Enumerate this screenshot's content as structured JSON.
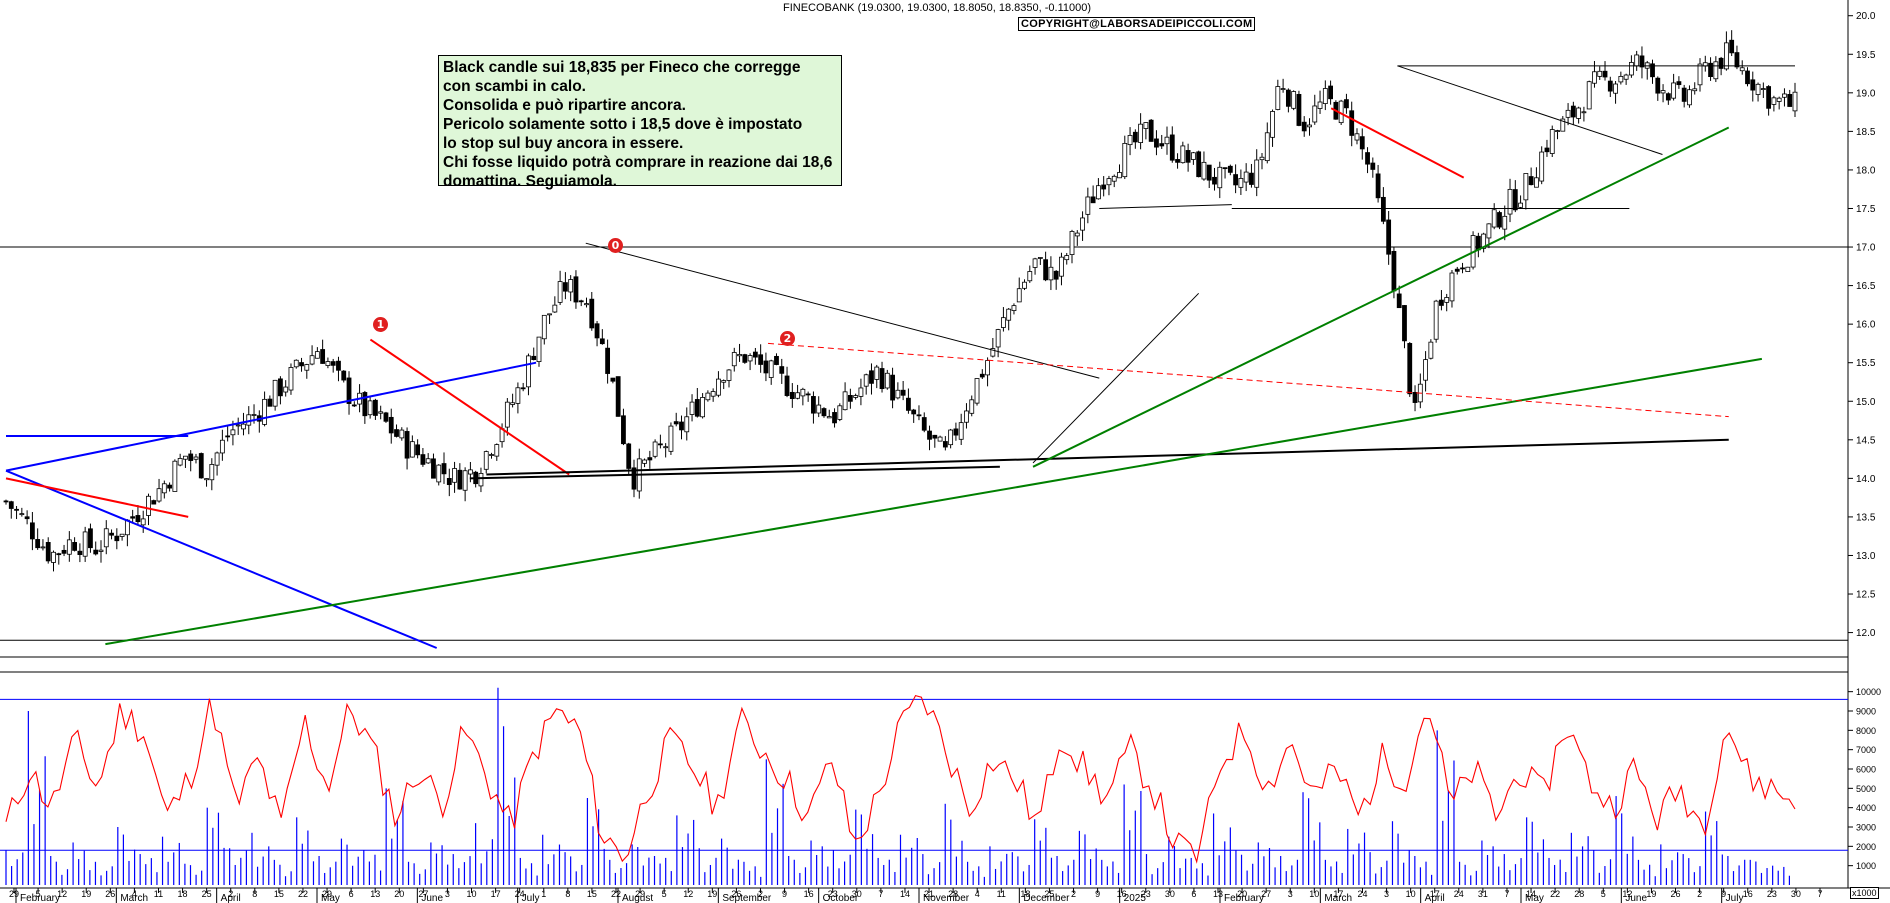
{
  "header": {
    "title": "FINECOBANK (19.0300, 19.0300, 18.8050, 18.8350, -0.11000)",
    "copyright": "COPYRIGHT@LABORSADEIPICCOLI.COM"
  },
  "annotation": {
    "lines": [
      "Black candle sui 18,835 per Fineco che corregge",
      "con scambi in calo.",
      "Consolida e può ripartire ancora.",
      "Pericolo solamente sotto i 18,5 dove è impostato",
      "lo stop sul buy ancora in essere.",
      "Chi fosse liquido potrà comprare in reazione dai 18,6",
      "domattina. Seguiamola."
    ]
  },
  "markers": [
    {
      "label": "1",
      "color": "#e02020"
    },
    {
      "label": "0",
      "color": "#e02020"
    },
    {
      "label": "2",
      "color": "#e02020"
    }
  ],
  "colors": {
    "up_candle": "#ffffff",
    "down_candle": "#000000",
    "trend_green": "#008000",
    "trend_red": "#ff0000",
    "trend_blue": "#0000ff",
    "trend_black": "#000000",
    "oscillator": "#ff0000",
    "volume": "#0000ff"
  },
  "volume_unit": "x1000",
  "chart_data": [
    {
      "type": "candlestick",
      "title": "FINECOBANK (19.0300, 19.0300, 18.8050, 18.8350, -0.11000)",
      "last": {
        "open": 19.03,
        "high": 19.03,
        "low": 18.805,
        "close": 18.835,
        "change": -0.11
      },
      "ylim": [
        11.8,
        20.1
      ],
      "y_ticks": [
        "12.0",
        "12.5",
        "13.0",
        "13.5",
        "14.0",
        "14.5",
        "15.0",
        "15.5",
        "16.0",
        "16.5",
        "17.0",
        "17.5",
        "18.0",
        "18.5",
        "19.0",
        "19.5",
        "20.0"
      ],
      "x_day_ticks": [
        "29",
        "5",
        "12",
        "19",
        "26",
        "4",
        "11",
        "18",
        "25",
        "2",
        "8",
        "15",
        "22",
        "29",
        "6",
        "13",
        "20",
        "27",
        "3",
        "10",
        "17",
        "24",
        "1",
        "8",
        "15",
        "22",
        "29",
        "5",
        "12",
        "19",
        "26",
        "2",
        "9",
        "16",
        "23",
        "30",
        "7",
        "14",
        "21",
        "28",
        "4",
        "11",
        "18",
        "25",
        "2",
        "9",
        "16",
        "23",
        "30",
        "6",
        "13",
        "20",
        "27",
        "3",
        "10",
        "17",
        "24",
        "3",
        "10",
        "17",
        "24",
        "31",
        "7",
        "14",
        "22",
        "28",
        "5",
        "12",
        "19",
        "26",
        "2",
        "9",
        "16",
        "23",
        "30",
        "7"
      ],
      "x_month_labels": [
        "February",
        "March",
        "April",
        "May",
        "June",
        "July",
        "August",
        "September",
        "October",
        "November",
        "December",
        "2025",
        "February",
        "March",
        "April",
        "May",
        "June",
        "July"
      ],
      "horizontal_levels": [
        17.0,
        11.9
      ],
      "price_path": [
        13.7,
        13.4,
        13.0,
        13.2,
        13.1,
        13.3,
        13.6,
        13.9,
        14.3,
        14.1,
        14.6,
        14.8,
        15.1,
        15.4,
        15.7,
        15.2,
        14.9,
        14.7,
        14.4,
        14.2,
        14.0,
        14.1,
        14.6,
        15.2,
        16.0,
        16.5,
        16.3,
        15.4,
        14.0,
        14.3,
        14.6,
        15.0,
        15.4,
        15.6,
        15.4,
        15.2,
        15.0,
        14.8,
        15.1,
        15.4,
        15.0,
        14.6,
        14.3,
        15.0,
        15.6,
        16.3,
        16.8,
        16.6,
        17.3,
        17.9,
        18.2,
        18.5,
        18.3,
        18.1,
        17.9,
        17.8,
        18.0,
        19.2,
        18.6,
        18.9,
        18.7,
        18.0,
        16.7,
        14.8,
        16.3,
        16.8,
        17.1,
        17.5,
        17.8,
        18.4,
        18.7,
        19.1,
        19.2,
        19.4,
        19.1,
        18.9,
        19.3,
        19.5,
        19.2,
        18.9,
        18.835
      ]
    },
    {
      "type": "line_bar",
      "title": "",
      "ylim": [
        0,
        10500
      ],
      "y_ticks": [
        "1000",
        "2000",
        "3000",
        "4000",
        "5000",
        "6000",
        "7000",
        "8000",
        "9000",
        "10000"
      ],
      "unit": "x1000",
      "oscillator_path": [
        3000,
        6000,
        4000,
        7500,
        5000,
        9000,
        8000,
        3500,
        5500,
        9500,
        4000,
        6500,
        3000,
        8500,
        5000,
        9200,
        7000,
        3500,
        6000,
        4200,
        8000,
        5500,
        3000,
        6800,
        9000,
        8000,
        2500,
        1500,
        5000,
        7500,
        6000,
        4000,
        8500,
        7000,
        5500,
        3500,
        6500,
        2000,
        4500,
        8200,
        9800,
        7000,
        4000,
        6500,
        5500,
        3000,
        8000,
        6000,
        4500,
        7000,
        5000,
        2000,
        1500,
        6500,
        8000,
        5000,
        7500,
        4500,
        6000,
        3500,
        6500,
        5500,
        9500,
        4000,
        6000,
        3500,
        6000,
        4500,
        8500,
        5500,
        4000,
        6000,
        3500,
        5000,
        3000,
        8500,
        5500,
        5000,
        4300
      ],
      "volume_bars": [
        1800,
        9000,
        1500,
        2200,
        1200,
        3000,
        1600,
        2500,
        1100,
        4000,
        1900,
        2700,
        1300,
        3500,
        1500,
        2400,
        1800,
        5000,
        1200,
        2200,
        1600,
        3200,
        10200,
        1400,
        2600,
        1700,
        4500,
        1300,
        2100,
        1500,
        3600,
        1900,
        2400,
        1200,
        6500,
        1500,
        2300,
        1800,
        3900,
        1400,
        2600,
        1600,
        4200,
        1200,
        2000,
        1700,
        3400,
        1500,
        2800,
        1300,
        5200,
        1600,
        2500,
        1400,
        3700,
        1800,
        2200,
        1500,
        4800,
        1300,
        2900,
        1700,
        3300,
        1500,
        8000,
        1200,
        2300,
        1600,
        3500,
        1400,
        2700,
        1800,
        4600,
        1300,
        2100,
        1600,
        3800,
        1500,
        1300,
        1000
      ]
    }
  ]
}
